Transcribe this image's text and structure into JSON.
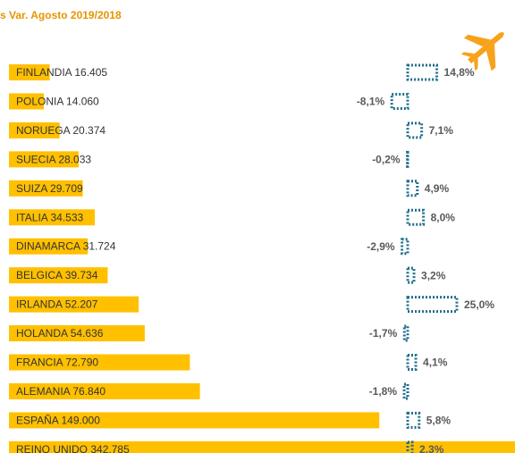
{
  "chart_data": {
    "type": "bar",
    "title": "s Var.  Agosto 2019/2018",
    "categories": [
      "FINLANDIA",
      "POLONIA",
      "NORUEGA",
      "SUECIA",
      "SUIZA",
      "ITALIA",
      "DINAMARCA",
      "BELGICA",
      "IRLANDA",
      "HOLANDA",
      "FRANCIA",
      "ALEMANIA",
      "ESPAÑA",
      "REINO UNIDO"
    ],
    "xlim": [
      0,
      200000
    ],
    "x2lim": [
      -10,
      30
    ],
    "series": [
      {
        "color": "#ffc000",
        "values": [
          16405,
          14060,
          20374,
          28033,
          29709,
          34533,
          31724,
          39734,
          52207,
          54636,
          72790,
          76840,
          149000,
          342785
        ],
        "value_labels": [
          "16.405",
          "14.060",
          "20.374",
          "28.033",
          "29.709",
          "34.533",
          "31.724",
          "39.734",
          "52.207",
          "54.636",
          "72.790",
          "76.840",
          "149.000",
          "342.785"
        ]
      },
      {
        "color": "#1f6e8c",
        "axis": "x2",
        "values": [
          14.8,
          -8.1,
          7.1,
          -0.2,
          4.9,
          8.0,
          -2.9,
          3.2,
          25.0,
          -1.7,
          4.1,
          -1.8,
          5.8,
          2.3
        ],
        "value_labels": [
          "14,8%",
          "-8,1%",
          "7,1%",
          "-0,2%",
          "4,9%",
          "8,0%",
          "-2,9%",
          "3,2%",
          "25,0%",
          "-1,7%",
          "4,1%",
          "-1,8%",
          "5,8%",
          "2,3%"
        ]
      }
    ]
  }
}
